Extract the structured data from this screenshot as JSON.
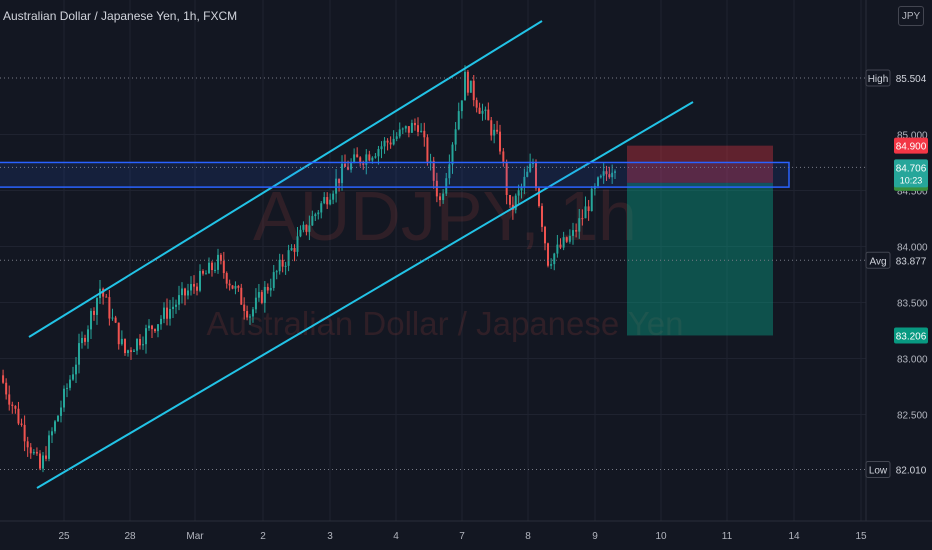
{
  "header": {
    "title": "Australian Dollar / Japanese Yen, 1h, FXCM",
    "currency_button": "JPY"
  },
  "watermark": {
    "symbol": "AUDJPY, 1h",
    "name": "Australian Dollar / Japanese Yen"
  },
  "colors": {
    "background": "#131722",
    "up": "#26a69a",
    "down": "#ef5350",
    "channel": "#22c3e6",
    "zone": "#2962ff",
    "stop_zone": "#f23645",
    "target_zone": "#089981"
  },
  "price_axis": {
    "ticks": [
      85.0,
      84.5,
      84.0,
      83.5,
      83.0,
      82.5
    ],
    "tick_labels": [
      "85.000",
      "84.500",
      "84.000",
      "83.500",
      "83.000",
      "82.500"
    ]
  },
  "time_axis": {
    "labels": [
      "25",
      "28",
      "Mar",
      "2",
      "3",
      "4",
      "7",
      "8",
      "9",
      "10",
      "11",
      "14",
      "15"
    ]
  },
  "price_tags": {
    "high": {
      "label": "High",
      "value": "85.504"
    },
    "stop": {
      "value": "84.900"
    },
    "current": {
      "value": "84.706",
      "countdown": "10:23"
    },
    "entry": {
      "value": "84.568"
    },
    "avg": {
      "label": "Avg",
      "value": "83.877"
    },
    "target": {
      "value": "83.206"
    },
    "low": {
      "label": "Low",
      "value": "82.010"
    }
  },
  "chart_data": {
    "type": "candlestick",
    "symbol": "AUDJPY",
    "interval": "1h",
    "exchange": "FXCM",
    "y_range": [
      81.55,
      86.2
    ],
    "high": 85.504,
    "low": 82.01,
    "average": 83.877,
    "last_price": 84.706,
    "key_points": [
      {
        "time": "24 Feb",
        "price": 82.01
      },
      {
        "time": "25 Feb",
        "price": 83.63
      },
      {
        "time": "27 Feb",
        "price": 83.05
      },
      {
        "time": "1 Mar",
        "price": 83.86
      },
      {
        "time": "2 Mar",
        "price": 83.4
      },
      {
        "time": "3 Mar",
        "price": 84.7
      },
      {
        "time": "4 Mar",
        "price": 85.1
      },
      {
        "time": "4 Mar",
        "price": 84.4
      },
      {
        "time": "7 Mar",
        "price": 85.5
      },
      {
        "time": "7 Mar",
        "price": 84.9
      },
      {
        "time": "8 Mar",
        "price": 84.3
      },
      {
        "time": "8 Mar",
        "price": 84.75
      },
      {
        "time": "8 Mar",
        "price": 83.88
      },
      {
        "time": "9 Mar",
        "price": 84.1
      },
      {
        "time": "9 Mar",
        "price": 84.55
      },
      {
        "time": "9 Mar",
        "price": 84.75
      }
    ],
    "resistance_zone": [
      84.53,
      84.75
    ],
    "short_position": {
      "entry": 84.568,
      "stop": 84.9,
      "target": 83.206
    }
  }
}
